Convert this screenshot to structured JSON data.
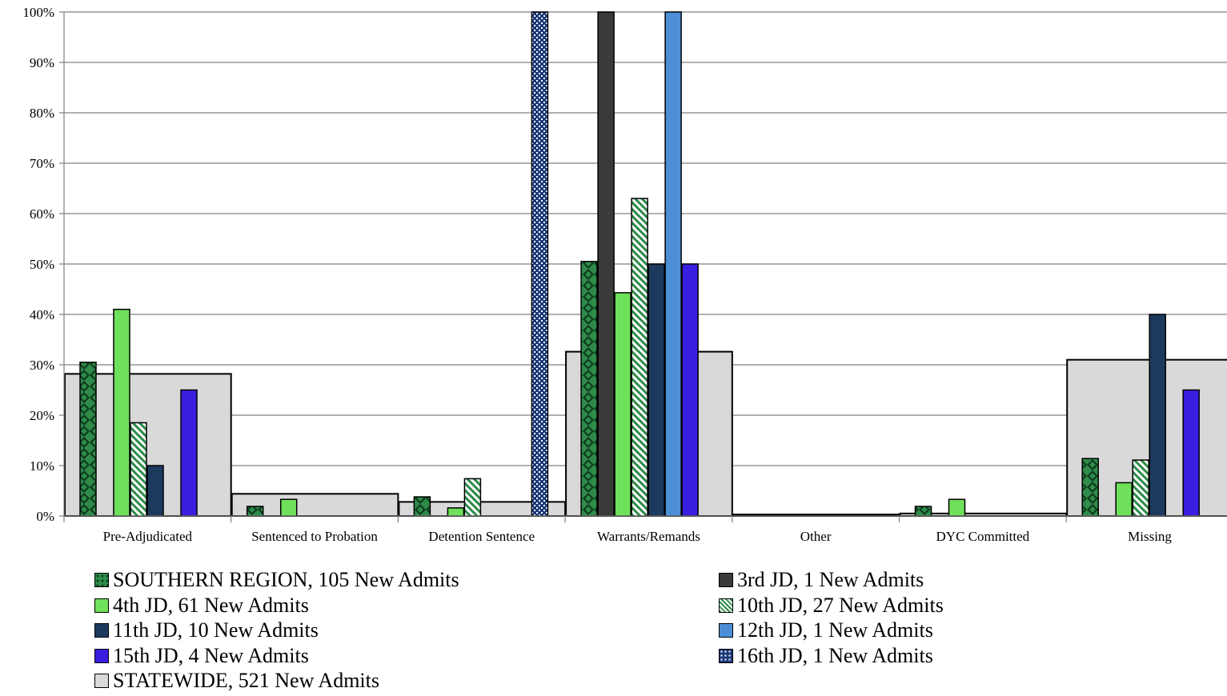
{
  "chart_data": {
    "type": "bar",
    "categories": [
      "Pre-Adjudicated",
      "Sentenced to Probation",
      "Detention Sentence",
      "Warrants/Remands",
      "Other",
      "DYC Committed",
      "Missing"
    ],
    "y_axis": {
      "min": 0,
      "max": 100,
      "tick_labels": [
        "0%",
        "10%",
        "20%",
        "30%",
        "40%",
        "50%",
        "60%",
        "70%",
        "80%",
        "90%",
        "100%"
      ],
      "grid": true
    },
    "statewide": {
      "name": "STATEWIDE, 521 New Admits",
      "values": [
        28.2,
        4.4,
        2.8,
        32.6,
        0.3,
        0.5,
        31.0
      ],
      "color": "#d9d9d9"
    },
    "series": [
      {
        "name": "SOUTHERN REGION, 105 New Admits",
        "values": [
          30.5,
          1.9,
          3.8,
          50.5,
          0,
          1.9,
          11.4
        ],
        "color": "#2e8b4a",
        "pattern": "dots"
      },
      {
        "name": "3rd JD, 1 New Admits",
        "values": [
          0,
          0,
          0,
          100,
          0,
          0,
          0
        ],
        "color": "#3a3a3a",
        "pattern": "solid"
      },
      {
        "name": "4th JD, 61 New Admits",
        "values": [
          41.0,
          3.3,
          1.6,
          44.3,
          0,
          3.3,
          6.6
        ],
        "color": "#6fe05a",
        "pattern": "solid"
      },
      {
        "name": "10th JD, 27 New Admits",
        "values": [
          18.5,
          0,
          7.4,
          63.0,
          0,
          0,
          11.1
        ],
        "color": "#2e8b4a",
        "pattern": "diagonal"
      },
      {
        "name": "11th JD, 10 New Admits",
        "values": [
          10,
          0,
          0,
          50,
          0,
          0,
          40
        ],
        "color": "#1c3a5e",
        "pattern": "solid"
      },
      {
        "name": "12th JD, 1 New Admits",
        "values": [
          0,
          0,
          0,
          100,
          0,
          0,
          0
        ],
        "color": "#4d8fd6",
        "pattern": "solid"
      },
      {
        "name": "15th JD, 4 New Admits",
        "values": [
          25,
          0,
          0,
          50,
          0,
          0,
          25
        ],
        "color": "#3a1ee0",
        "pattern": "solid"
      },
      {
        "name": "16th JD, 1 New Admits",
        "values": [
          0,
          0,
          100,
          0,
          0,
          0,
          0
        ],
        "color": "#1c3a7a",
        "pattern": "checker"
      }
    ],
    "legend": {
      "placement": "bottom",
      "left_column": [
        "SOUTHERN REGION, 105 New Admits",
        "4th JD, 61 New Admits",
        "11th JD, 10 New Admits",
        "15th JD, 4 New Admits",
        "STATEWIDE, 521 New Admits"
      ],
      "right_column": [
        "3rd JD, 1 New Admits",
        "10th JD, 27 New Admits",
        "12th JD, 1 New Admits",
        "16th JD, 1 New Admits"
      ]
    }
  }
}
